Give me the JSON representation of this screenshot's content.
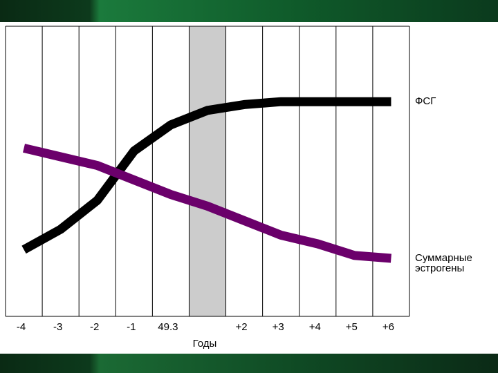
{
  "chart_data": {
    "type": "line",
    "xlabel": "Годы",
    "categories": [
      "-4",
      "-3",
      "-2",
      "-1",
      "49.3",
      null,
      "+2",
      "+3",
      "+4",
      "+5",
      "+6"
    ],
    "highlight_category": 5,
    "ylim": [
      0,
      100
    ],
    "series": [
      {
        "name": "ФСГ",
        "color": "#000000",
        "values": [
          23,
          30,
          40,
          57,
          66,
          71,
          73,
          74,
          74,
          74,
          74
        ]
      },
      {
        "name": "Суммарные эстрогены",
        "color": "#6b006b",
        "values": [
          58,
          55,
          52,
          47,
          42,
          38,
          33,
          28,
          25,
          21,
          20
        ]
      }
    ]
  }
}
